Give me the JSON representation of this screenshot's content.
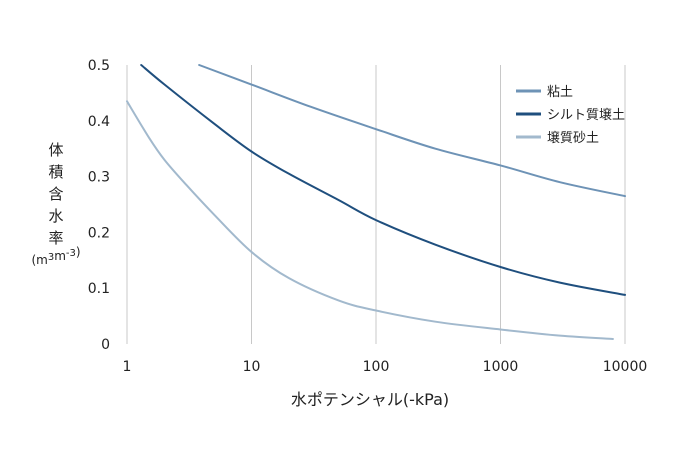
{
  "chart_data": {
    "type": "line",
    "title": "",
    "xlabel": "水ポテンシャル(-kPa)",
    "ylabel": [
      "体",
      "積",
      "含",
      "水",
      "率"
    ],
    "yunit": "(m3m-3)",
    "x_scale": "log",
    "xlim": [
      1,
      10000
    ],
    "ylim": [
      0,
      0.5
    ],
    "x_ticks": [
      "1",
      "10",
      "100",
      "1000",
      "10000"
    ],
    "y_ticks": [
      "0",
      "0.1",
      "0.2",
      "0.3",
      "0.4",
      "0.5"
    ],
    "grid": "vertical",
    "legend_position": "top-right",
    "series": [
      {
        "name": "粘土",
        "color": "#6e93b6",
        "x": [
          3.8,
          10,
          30,
          100,
          300,
          1000,
          3000,
          10000
        ],
        "y": [
          0.5,
          0.465,
          0.425,
          0.385,
          0.35,
          0.32,
          0.29,
          0.265
        ]
      },
      {
        "name": "シルト質壌土",
        "color": "#1f4f7e",
        "x": [
          1.3,
          2,
          5,
          10,
          20,
          50,
          100,
          300,
          1000,
          3000,
          10000
        ],
        "y": [
          0.5,
          0.465,
          0.395,
          0.345,
          0.305,
          0.258,
          0.222,
          0.178,
          0.138,
          0.11,
          0.088
        ]
      },
      {
        "name": "壌質砂土",
        "color": "#a2b9cd",
        "x": [
          1,
          1.5,
          2,
          3,
          5,
          10,
          20,
          50,
          100,
          300,
          1000,
          3000,
          8000
        ],
        "y": [
          0.435,
          0.37,
          0.33,
          0.285,
          0.232,
          0.165,
          0.118,
          0.078,
          0.06,
          0.04,
          0.026,
          0.015,
          0.009
        ]
      }
    ]
  }
}
